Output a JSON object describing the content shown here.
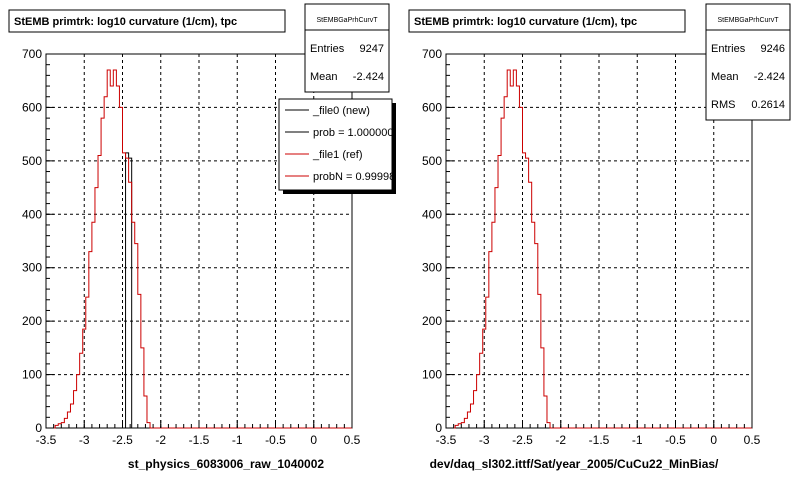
{
  "footer": {
    "timestamp": ""
  },
  "chart_data": [
    {
      "type": "bar",
      "title": "StEMB primtrk: log10 curvature (1/cm), tpc",
      "xlabel": "st_physics_6083006_raw_1040002",
      "ylabel": "",
      "xlim": [
        -3.5,
        0.5
      ],
      "ylim": [
        0,
        700
      ],
      "x_ticks": [
        "-3.5",
        "-3",
        "-2.5",
        "-2",
        "-1.5",
        "-1",
        "-0.5",
        "0",
        "0.5"
      ],
      "y_ticks": [
        "0",
        "100",
        "200",
        "300",
        "400",
        "500",
        "600",
        "700"
      ],
      "grid": true,
      "stats": {
        "name": "StEMBGaPrhCurvT",
        "rows": [
          {
            "label": "Entries",
            "value": "9247"
          },
          {
            "label": "Mean",
            "value": "-2.424"
          }
        ]
      },
      "legend": {
        "placement": "top-right",
        "entries": [
          {
            "label": "_file0 (new)",
            "color": "#000000"
          },
          {
            "label": "prob = 1.000000",
            "color": "#000000"
          },
          {
            "label": "_file1 (ref)",
            "color": "#cc0000"
          },
          {
            "label": "probN = 0.999980",
            "color": "#cc0000"
          }
        ]
      },
      "bin_edges_start": -3.5,
      "bin_width": 0.04,
      "series": [
        {
          "color": "#000000",
          "values": [
            0,
            0,
            0,
            0,
            0,
            0,
            0,
            0,
            0,
            0,
            0,
            0,
            0,
            0,
            0,
            0,
            0,
            0,
            0,
            0,
            0,
            0,
            0,
            0,
            0,
            0,
            515,
            505,
            0,
            0,
            0,
            0,
            0,
            0,
            0,
            0,
            0,
            0,
            0,
            0,
            0,
            0,
            0,
            0,
            0,
            0,
            0,
            0,
            0,
            0,
            0,
            0,
            0,
            0,
            0,
            0,
            0,
            0,
            0,
            0,
            0,
            0,
            0,
            0,
            0,
            0,
            0,
            0,
            0,
            0,
            0,
            0,
            0,
            0,
            0,
            0,
            0,
            0,
            0,
            0,
            0,
            0,
            0,
            0,
            0,
            0,
            0,
            0,
            0,
            0,
            0,
            0,
            0,
            0,
            0,
            0,
            0,
            0,
            0,
            0
          ]
        },
        {
          "color": "#cc0000",
          "values": [
            0,
            0,
            0,
            5,
            8,
            10,
            18,
            30,
            45,
            70,
            100,
            140,
            185,
            245,
            330,
            385,
            450,
            510,
            580,
            620,
            670,
            640,
            670,
            640,
            600,
            515,
            505,
            460,
            385,
            345,
            250,
            150,
            60,
            10,
            0,
            0,
            0,
            0,
            0,
            0,
            0,
            0,
            0,
            0,
            0,
            0,
            0,
            0,
            0,
            0,
            0,
            0,
            0,
            0,
            0,
            0,
            0,
            0,
            0,
            0,
            0,
            0,
            0,
            0,
            0,
            0,
            0,
            0,
            0,
            0,
            0,
            0,
            0,
            0,
            0,
            0,
            0,
            0,
            0,
            0,
            0,
            0,
            0,
            0,
            0,
            0,
            0,
            0,
            0,
            0,
            0,
            0,
            0,
            0,
            0,
            0,
            0,
            0,
            0,
            0
          ]
        }
      ]
    },
    {
      "type": "bar",
      "title": "StEMB primtrk: log10 curvature (1/cm), tpc",
      "xlabel": "dev/daq_sl302.ittf/Sat/year_2005/CuCu22_MinBias/",
      "ylabel": "",
      "xlim": [
        -3.5,
        0.5
      ],
      "ylim": [
        0,
        700
      ],
      "x_ticks": [
        "-3.5",
        "-3",
        "-2.5",
        "-2",
        "-1.5",
        "-1",
        "-0.5",
        "0",
        "0.5"
      ],
      "y_ticks": [
        "0",
        "100",
        "200",
        "300",
        "400",
        "500",
        "600",
        "700"
      ],
      "grid": true,
      "stats": {
        "name": "StEMBGaPrhCurvT",
        "rows": [
          {
            "label": "Entries",
            "value": "9246"
          },
          {
            "label": "Mean",
            "value": "-2.424"
          },
          {
            "label": "RMS",
            "value": "0.2614"
          }
        ]
      },
      "bin_edges_start": -3.5,
      "bin_width": 0.04,
      "series": [
        {
          "color": "#cc0000",
          "values": [
            0,
            0,
            0,
            5,
            8,
            10,
            18,
            30,
            45,
            70,
            100,
            140,
            185,
            245,
            330,
            385,
            450,
            510,
            580,
            620,
            670,
            640,
            670,
            640,
            600,
            515,
            505,
            460,
            385,
            345,
            250,
            150,
            60,
            10,
            0,
            0,
            0,
            0,
            0,
            0,
            0,
            0,
            0,
            0,
            0,
            0,
            0,
            0,
            0,
            0,
            0,
            0,
            0,
            0,
            0,
            0,
            0,
            0,
            0,
            0,
            0,
            0,
            0,
            0,
            0,
            0,
            0,
            0,
            0,
            0,
            0,
            0,
            0,
            0,
            0,
            0,
            0,
            0,
            0,
            0,
            0,
            0,
            0,
            0,
            0,
            0,
            0,
            0,
            0,
            0,
            0,
            0,
            0,
            0,
            0,
            0,
            0,
            0,
            0,
            0
          ]
        }
      ]
    }
  ]
}
